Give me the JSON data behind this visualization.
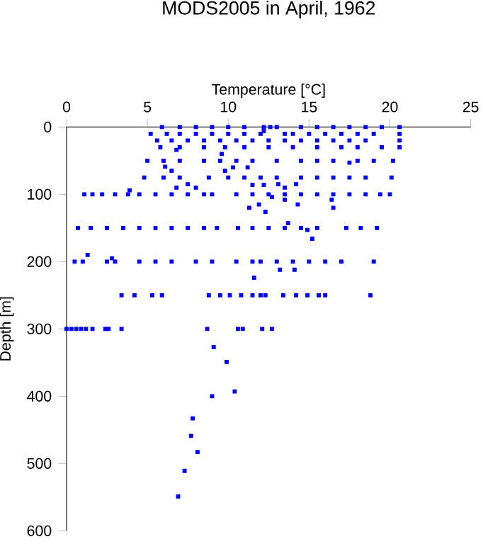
{
  "chart_data": {
    "type": "scatter",
    "title": "MODS2005 in April, 1962",
    "xlabel": "Temperature [°C]",
    "ylabel": "Depth [m]",
    "xlim": [
      0,
      25
    ],
    "xticks": [
      0,
      5,
      10,
      15,
      20,
      25
    ],
    "ylim": [
      600,
      0
    ],
    "yticks": [
      0,
      100,
      200,
      300,
      400,
      500,
      600
    ],
    "marker": "square",
    "color": "#0000ff",
    "x": [
      5.9,
      7.0,
      8.0,
      9.0,
      10.0,
      11.0,
      12.2,
      12.6,
      13.0,
      14.5,
      15.5,
      16.5,
      17.5,
      18.5,
      19.5,
      20.6,
      5.2,
      6.2,
      7.0,
      8.0,
      9.0,
      10.0,
      11.0,
      12.0,
      13.5,
      14.0,
      15.0,
      16.0,
      17.0,
      18.0,
      19.0,
      20.6,
      5.6,
      6.5,
      7.5,
      8.5,
      9.5,
      10.5,
      11.5,
      12.5,
      13.5,
      14.5,
      15.5,
      16.5,
      17.5,
      18.5,
      20.6,
      5.8,
      7.0,
      8.5,
      9.8,
      11.0,
      12.5,
      14.0,
      15.5,
      17.0,
      18.0,
      19.5,
      20.6,
      5.0,
      6.0,
      7.0,
      8.5,
      9.5,
      10.5,
      11.5,
      13.0,
      14.5,
      15.5,
      16.5,
      18.0,
      19.0,
      20.2,
      4.8,
      6.0,
      7.0,
      8.8,
      10.0,
      11.0,
      12.0,
      13.0,
      14.5,
      15.5,
      16.5,
      17.5,
      18.5,
      20.1,
      1.1,
      1.6,
      2.2,
      3.0,
      3.8,
      4.5,
      5.5,
      6.5,
      7.5,
      8.5,
      9.0,
      10.5,
      11.5,
      12.5,
      13.5,
      14.5,
      15.5,
      16.5,
      17.5,
      18.5,
      19.4,
      20.0,
      0.7,
      1.5,
      2.5,
      3.5,
      4.5,
      5.5,
      6.5,
      7.5,
      8.5,
      9.3,
      10.6,
      11.5,
      12.5,
      13.5,
      14.5,
      15.5,
      17.3,
      18.2,
      19.2,
      0.5,
      1.0,
      2.5,
      3.0,
      4.5,
      5.5,
      6.5,
      8.0,
      9.0,
      10.5,
      11.5,
      12.0,
      13.0,
      14.0,
      15.0,
      16.0,
      17.0,
      19.0,
      3.4,
      4.2,
      5.3,
      5.9,
      8.8,
      9.5,
      10.1,
      10.8,
      11.5,
      12.0,
      12.3,
      13.4,
      14.2,
      14.9,
      15.6,
      16.0,
      18.8,
      0.0,
      0.3,
      0.6,
      0.9,
      1.2,
      1.6,
      2.4,
      2.6,
      3.4,
      8.7,
      10.6,
      10.9,
      12.1,
      12.7,
      9.1,
      9.9,
      10.4,
      9.0,
      7.8,
      7.7,
      8.1,
      7.3,
      6.9,
      11.6,
      15.2,
      13.2,
      14.1,
      11.3,
      11.9,
      12.3,
      16.5,
      14.3,
      1.3,
      2.8,
      9.6,
      6.5,
      6.1,
      10.3,
      11.2,
      3.9,
      6.8,
      7.5,
      8.0,
      11.5,
      12.2,
      13.1,
      13.5,
      14.2,
      12.7,
      13.5,
      16.4,
      14.9,
      13.7,
      9.8,
      17.5,
      6.8,
      12.2
    ],
    "values": [
      0,
      0,
      0,
      0,
      0,
      0,
      0,
      0,
      0,
      0,
      0,
      0,
      0,
      0,
      0,
      0,
      10,
      10,
      10,
      10,
      10,
      10,
      10,
      10,
      10,
      10,
      10,
      10,
      10,
      10,
      10,
      10,
      20,
      20,
      20,
      20,
      20,
      20,
      20,
      20,
      20,
      20,
      20,
      20,
      20,
      20,
      20,
      30,
      30,
      30,
      30,
      30,
      30,
      30,
      30,
      30,
      30,
      30,
      30,
      50,
      50,
      50,
      50,
      50,
      50,
      50,
      50,
      50,
      50,
      50,
      50,
      50,
      50,
      75,
      75,
      75,
      75,
      75,
      75,
      75,
      75,
      75,
      75,
      75,
      75,
      75,
      75,
      100,
      100,
      100,
      100,
      100,
      100,
      100,
      100,
      100,
      100,
      100,
      100,
      100,
      100,
      100,
      100,
      100,
      100,
      100,
      100,
      100,
      100,
      150,
      150,
      150,
      150,
      150,
      150,
      150,
      150,
      150,
      150,
      150,
      150,
      150,
      150,
      150,
      150,
      150,
      150,
      150,
      200,
      200,
      200,
      200,
      200,
      200,
      200,
      200,
      200,
      200,
      200,
      200,
      200,
      200,
      200,
      200,
      200,
      200,
      250,
      250,
      250,
      250,
      250,
      250,
      250,
      250,
      250,
      250,
      250,
      250,
      250,
      250,
      250,
      250,
      250,
      300,
      300,
      300,
      300,
      300,
      300,
      300,
      300,
      300,
      300,
      300,
      300,
      300,
      300,
      327,
      349,
      393,
      400,
      433,
      459,
      483,
      511,
      549,
      224,
      166,
      212,
      212,
      120,
      115,
      126,
      120,
      115,
      190,
      195,
      40,
      65,
      59,
      60,
      60,
      94,
      90,
      85,
      90,
      86,
      86,
      85,
      90,
      85,
      104,
      108,
      108,
      153,
      143,
      65,
      53,
      34,
      6
    ]
  }
}
